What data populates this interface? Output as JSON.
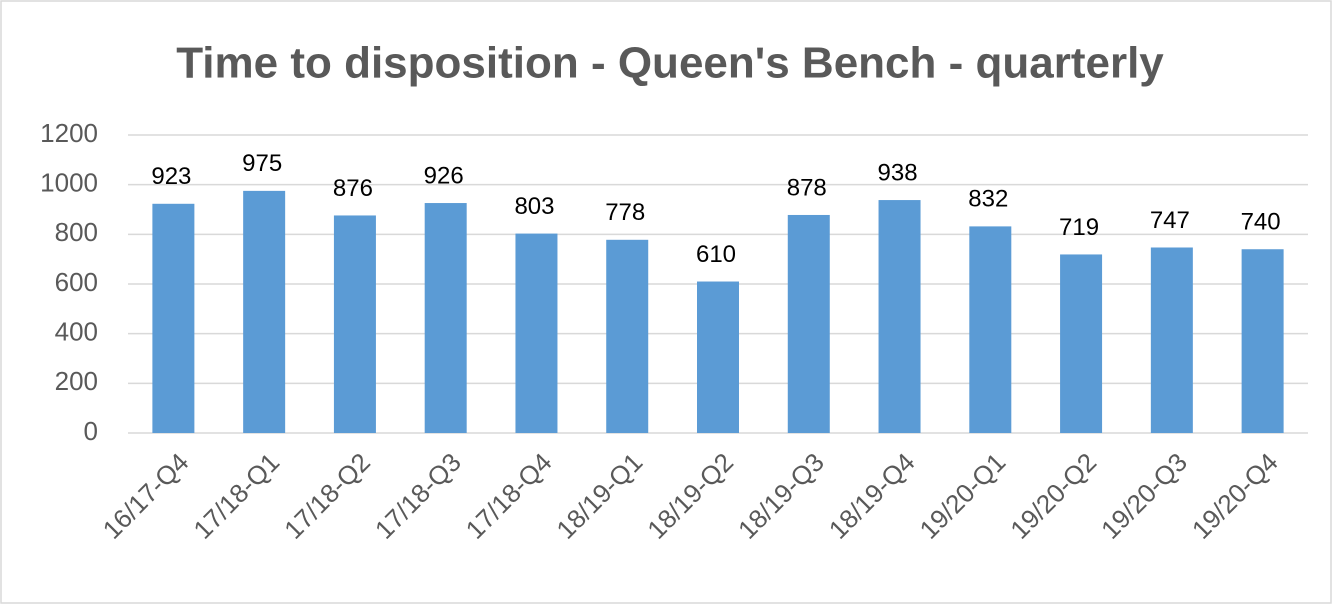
{
  "chart_data": {
    "type": "bar",
    "title": "Time to disposition - Queen's Bench - quarterly",
    "categories": [
      "16/17-Q4",
      "17/18-Q1",
      "17/18-Q2",
      "17/18-Q3",
      "17/18-Q4",
      "18/19-Q1",
      "18/19-Q2",
      "18/19-Q3",
      "18/19-Q4",
      "19/20-Q1",
      "19/20-Q2",
      "19/20-Q3",
      "19/20-Q4"
    ],
    "values": [
      923,
      975,
      876,
      926,
      803,
      778,
      610,
      878,
      938,
      832,
      719,
      747,
      740
    ],
    "color": "#5b9bd5",
    "ylim": [
      0,
      1200
    ],
    "yticks": [
      0,
      200,
      400,
      600,
      800,
      1000,
      1200
    ],
    "grid": true
  }
}
